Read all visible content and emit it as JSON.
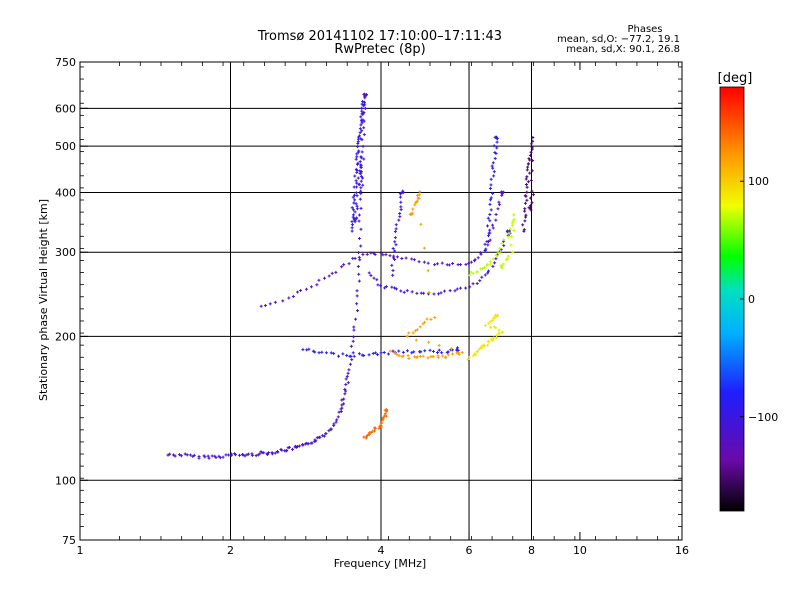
{
  "chart_data": {
    "type": "scatter",
    "title": "Tromsø 20141102 17:10:00–17:11:43",
    "subtitle": "RwPretec (8p)",
    "xlabel": "Frequency [MHz]",
    "ylabel": "Stationary phase Virtual Height [km]",
    "x_scale": "log",
    "y_scale": "log",
    "xlim": [
      1,
      16
    ],
    "ylim": [
      75,
      750
    ],
    "x_ticks": [
      1,
      2,
      4,
      6,
      8,
      10,
      16
    ],
    "x_tick_labels": [
      "1",
      "2",
      "4",
      "6",
      "8",
      "10",
      "16"
    ],
    "x_gridlines": [
      2,
      4,
      6,
      8
    ],
    "y_ticks": [
      75,
      100,
      200,
      300,
      400,
      500,
      600,
      750
    ],
    "y_tick_labels": [
      "75",
      "100",
      "200",
      "300",
      "400",
      "500",
      "600",
      "750"
    ],
    "y_gridlines": [
      100,
      200,
      300,
      400,
      500,
      600
    ],
    "grid": true,
    "phase_stats": {
      "heading": "Phases",
      "line_o": "mean, sd,O: −77.2, 19.1",
      "line_x": "mean, sd,X:  90.1, 26.8"
    },
    "colorbar": {
      "label": "[deg]",
      "range": [
        -180,
        180
      ],
      "ticks": [
        100,
        0,
        -100
      ],
      "tick_labels": [
        "100",
        "0",
        "−100"
      ],
      "colormap": "rainbow: black → purple → blue → cyan → green → yellow → orange → red"
    },
    "traces": [
      {
        "name": "",
        "phase_deg": -110,
        "note": "O-mode E/F1 trace",
        "points": [
          [
            1.5,
            113
          ],
          [
            1.6,
            113
          ],
          [
            1.7,
            112
          ],
          [
            1.8,
            112
          ],
          [
            1.9,
            112
          ],
          [
            2.0,
            113
          ],
          [
            2.1,
            113
          ],
          [
            2.2,
            113
          ],
          [
            2.3,
            114
          ],
          [
            2.4,
            114
          ],
          [
            2.5,
            115
          ],
          [
            2.6,
            116
          ],
          [
            2.7,
            117
          ],
          [
            2.8,
            118
          ],
          [
            2.9,
            120
          ],
          [
            3.0,
            122
          ],
          [
            3.1,
            125
          ],
          [
            3.2,
            130
          ],
          [
            3.3,
            138
          ],
          [
            3.35,
            145
          ],
          [
            3.4,
            155
          ],
          [
            3.45,
            168
          ],
          [
            3.5,
            185
          ],
          [
            3.55,
            210
          ],
          [
            3.6,
            250
          ],
          [
            3.62,
            300
          ],
          [
            3.64,
            360
          ],
          [
            3.66,
            430
          ],
          [
            3.68,
            500
          ],
          [
            3.7,
            580
          ],
          [
            3.72,
            640
          ]
        ]
      },
      {
        "name": "",
        "phase_deg": -95,
        "note": "cusp column near 3.6 MHz",
        "points": [
          [
            3.5,
            330
          ],
          [
            3.52,
            360
          ],
          [
            3.54,
            390
          ],
          [
            3.56,
            420
          ],
          [
            3.58,
            450
          ],
          [
            3.6,
            480
          ],
          [
            3.62,
            510
          ],
          [
            3.64,
            540
          ],
          [
            3.66,
            570
          ],
          [
            3.68,
            600
          ],
          [
            3.7,
            620
          ],
          [
            3.62,
            400
          ],
          [
            3.64,
            440
          ],
          [
            3.66,
            470
          ],
          [
            3.58,
            380
          ],
          [
            3.56,
            350
          ]
        ]
      },
      {
        "name": "",
        "phase_deg": -120,
        "note": "F-layer O-mode trace",
        "points": [
          [
            2.3,
            230
          ],
          [
            2.6,
            240
          ],
          [
            2.9,
            255
          ],
          [
            3.2,
            270
          ],
          [
            3.5,
            290
          ],
          [
            3.8,
            300
          ],
          [
            4.1,
            295
          ],
          [
            4.5,
            290
          ],
          [
            5.0,
            285
          ],
          [
            5.5,
            282
          ],
          [
            6.0,
            285
          ],
          [
            6.3,
            295
          ],
          [
            6.6,
            320
          ],
          [
            6.8,
            360
          ],
          [
            7.0,
            400
          ]
        ]
      },
      {
        "name": "",
        "phase_deg": -105,
        "note": "lower F trace",
        "points": [
          [
            3.8,
            270
          ],
          [
            4.0,
            255
          ],
          [
            4.3,
            250
          ],
          [
            4.7,
            247
          ],
          [
            5.2,
            247
          ],
          [
            5.7,
            250
          ],
          [
            6.2,
            258
          ],
          [
            6.6,
            275
          ],
          [
            6.9,
            300
          ],
          [
            7.2,
            330
          ]
        ]
      },
      {
        "name": "",
        "phase_deg": -85,
        "note": "lower branch 3–5.7 MHz",
        "points": [
          [
            2.8,
            188
          ],
          [
            3.0,
            185
          ],
          [
            3.3,
            183
          ],
          [
            3.6,
            183
          ],
          [
            3.9,
            184
          ],
          [
            4.2,
            185
          ],
          [
            4.6,
            186
          ],
          [
            5.0,
            186
          ],
          [
            5.4,
            186
          ],
          [
            5.7,
            188
          ]
        ]
      },
      {
        "name": "",
        "phase_deg": -100,
        "note": "vertical trace near 4.3 MHz",
        "points": [
          [
            4.2,
            270
          ],
          [
            4.25,
            300
          ],
          [
            4.3,
            330
          ],
          [
            4.35,
            360
          ],
          [
            4.4,
            400
          ]
        ]
      },
      {
        "name": "",
        "phase_deg": -90,
        "note": "vertical trace near 6.7 MHz",
        "points": [
          [
            6.5,
            300
          ],
          [
            6.55,
            330
          ],
          [
            6.6,
            360
          ],
          [
            6.65,
            400
          ],
          [
            6.7,
            440
          ],
          [
            6.75,
            480
          ],
          [
            6.8,
            520
          ]
        ]
      },
      {
        "name": "",
        "phase_deg": -150,
        "note": "violet trace near 7.9 MHz",
        "points": [
          [
            7.7,
            330
          ],
          [
            7.75,
            360
          ],
          [
            7.8,
            390
          ],
          [
            7.85,
            420
          ],
          [
            7.9,
            450
          ],
          [
            7.95,
            480
          ],
          [
            8.0,
            520
          ],
          [
            8.05,
            400
          ],
          [
            7.95,
            370
          ]
        ]
      },
      {
        "name": "",
        "phase_deg": 70,
        "note": "X-mode trace 6–7.5 MHz",
        "points": [
          [
            6.0,
            270
          ],
          [
            6.3,
            275
          ],
          [
            6.6,
            285
          ],
          [
            6.9,
            300
          ],
          [
            7.2,
            330
          ],
          [
            7.4,
            360
          ],
          [
            7.3,
            300
          ],
          [
            7.0,
            280
          ]
        ]
      },
      {
        "name": "",
        "phase_deg": 120,
        "note": "X-mode trace 4.2–5.8 MHz",
        "points": [
          [
            4.2,
            185
          ],
          [
            4.4,
            182
          ],
          [
            4.7,
            180
          ],
          [
            5.0,
            182
          ],
          [
            5.3,
            181
          ],
          [
            5.6,
            183
          ],
          [
            5.8,
            185
          ],
          [
            4.5,
            200
          ],
          [
            4.8,
            210
          ],
          [
            5.1,
            220
          ],
          [
            4.7,
            380
          ],
          [
            4.8,
            400
          ],
          [
            4.6,
            360
          ]
        ]
      },
      {
        "name": "",
        "phase_deg": 140,
        "note": "X-mode low trace near 4 MHz",
        "points": [
          [
            3.7,
            123
          ],
          [
            3.8,
            125
          ],
          [
            3.9,
            128
          ],
          [
            4.0,
            130
          ],
          [
            4.05,
            135
          ],
          [
            4.1,
            140
          ]
        ]
      },
      {
        "name": "",
        "phase_deg": 90,
        "note": "X-mode 6–7.5 MHz lower",
        "points": [
          [
            6.0,
            180
          ],
          [
            6.2,
            185
          ],
          [
            6.4,
            190
          ],
          [
            6.6,
            195
          ],
          [
            6.8,
            200
          ],
          [
            7.0,
            205
          ],
          [
            6.5,
            210
          ],
          [
            6.8,
            220
          ]
        ]
      }
    ]
  }
}
